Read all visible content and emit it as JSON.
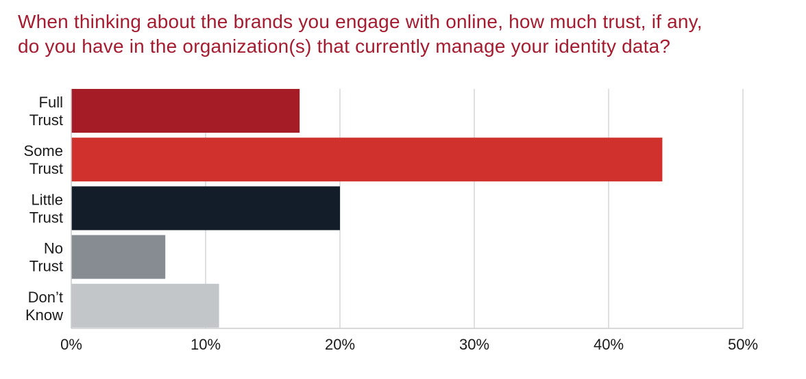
{
  "chart_data": {
    "type": "bar",
    "orientation": "horizontal",
    "title_lines": [
      "When thinking about the brands you engage with online, how much trust, if any,",
      "do you have in the organization(s) that currently manage your identity data?"
    ],
    "categories": [
      [
        "Full",
        "Trust"
      ],
      [
        "Some",
        "Trust"
      ],
      [
        "Little",
        "Trust"
      ],
      [
        "No",
        "Trust"
      ],
      [
        "Don’t",
        "Know"
      ]
    ],
    "values": [
      17,
      44,
      20,
      7,
      11
    ],
    "colors": [
      "#a51c27",
      "#d0312d",
      "#131c29",
      "#878b92",
      "#c2c6c9"
    ],
    "x_ticks": [
      "0%",
      "10%",
      "20%",
      "30%",
      "40%",
      "50%"
    ],
    "xlim": [
      0,
      50
    ],
    "grid": true,
    "grid_axis": "x",
    "legend": "none"
  }
}
